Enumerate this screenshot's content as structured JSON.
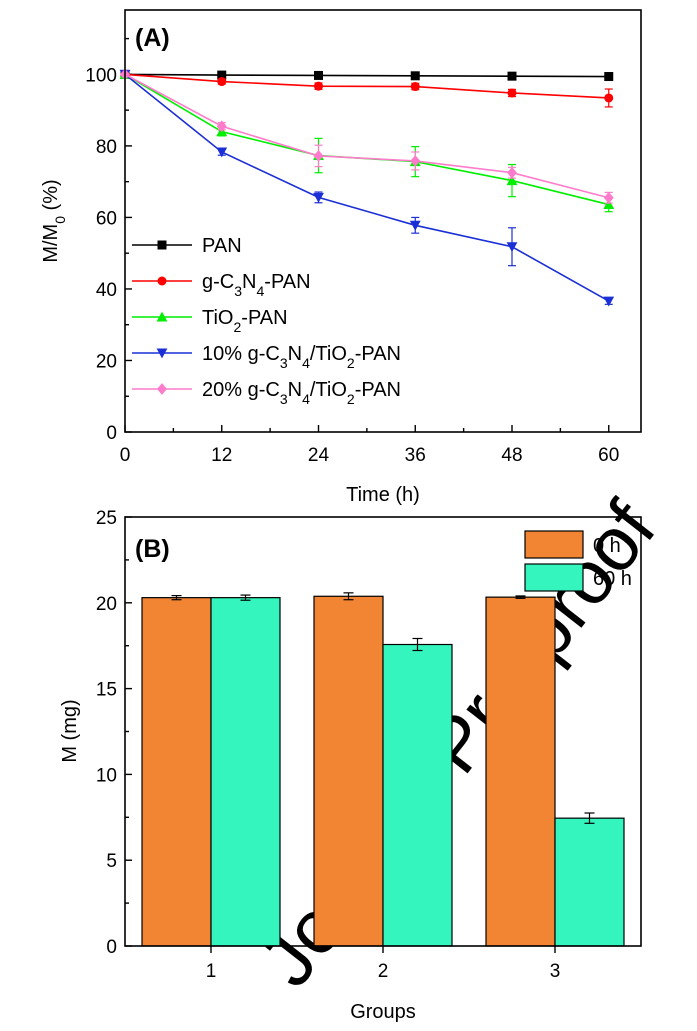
{
  "watermark": "Journal Pre-proof",
  "chart_data": [
    {
      "type": "line",
      "panel_label": "(A)",
      "xlabel": "Time (h)",
      "ylabel_main": "M/M",
      "ylabel_sub": "0",
      "ylabel_tail": " (%)",
      "x": [
        0,
        12,
        24,
        36,
        48,
        60
      ],
      "xticks": [
        "0",
        "12",
        "24",
        "36",
        "48",
        "60"
      ],
      "yticks": [
        "0",
        "20",
        "40",
        "60",
        "80",
        "100"
      ],
      "xlim": [
        0,
        64
      ],
      "ylim": [
        0,
        118
      ],
      "legend_position": "bottom-left",
      "series": [
        {
          "name": "PAN",
          "legend_parts": [
            [
              "PAN",
              ""
            ]
          ],
          "marker": "square",
          "color": "#000000",
          "values": [
            100,
            99.8,
            99.7,
            99.6,
            99.5,
            99.4
          ],
          "errors": [
            0,
            0.4,
            0.4,
            0.4,
            0.4,
            0.4
          ]
        },
        {
          "name": "g-C3N4-PAN",
          "legend_parts": [
            [
              "g-C",
              ""
            ],
            [
              "3",
              "sub"
            ],
            [
              "N",
              ""
            ],
            [
              "4",
              "sub"
            ],
            [
              "-PAN",
              ""
            ]
          ],
          "marker": "circle",
          "color": "#ff0000",
          "values": [
            100,
            98,
            96.7,
            96.6,
            94.8,
            93.4
          ],
          "errors": [
            0,
            0.7,
            0.9,
            0.9,
            1.0,
            2.5
          ]
        },
        {
          "name": "TiO2-PAN",
          "legend_parts": [
            [
              "TiO",
              ""
            ],
            [
              "2",
              "sub"
            ],
            [
              "-PAN",
              ""
            ]
          ],
          "marker": "triangle-up",
          "color": "#00ee00",
          "values": [
            100,
            84,
            77.3,
            75.6,
            70.3,
            63.6
          ],
          "errors": [
            0,
            1.2,
            4.8,
            4.2,
            4.5,
            2.0
          ]
        },
        {
          "name": "10% g-C3N4/TiO2-PAN",
          "legend_parts": [
            [
              "10% g-C",
              ""
            ],
            [
              "3",
              "sub"
            ],
            [
              "N",
              ""
            ],
            [
              "4",
              "sub"
            ],
            [
              "/TiO",
              ""
            ],
            [
              "2",
              "sub"
            ],
            [
              "-PAN",
              ""
            ]
          ],
          "marker": "triangle-down",
          "color": "#1a2fd6",
          "values": [
            100,
            78.3,
            65.6,
            57.8,
            51.8,
            36.6
          ],
          "errors": [
            0,
            0.9,
            1.5,
            2.2,
            5.3,
            0.9
          ]
        },
        {
          "name": "20% g-C3N4/TiO2-PAN",
          "legend_parts": [
            [
              "20% g-C",
              ""
            ],
            [
              "3",
              "sub"
            ],
            [
              "N",
              ""
            ],
            [
              "4",
              "sub"
            ],
            [
              "/TiO",
              ""
            ],
            [
              "2",
              "sub"
            ],
            [
              "-PAN",
              ""
            ]
          ],
          "marker": "diamond",
          "color": "#ff7ccc",
          "values": [
            100,
            85.5,
            77.2,
            75.8,
            72.5,
            65.5
          ],
          "errors": [
            0,
            1.0,
            3.0,
            2.5,
            1.5,
            1.5
          ]
        }
      ]
    },
    {
      "type": "bar",
      "panel_label": "(B)",
      "xlabel": "Groups",
      "ylabel": "M (mg)",
      "categories": [
        "1",
        "2",
        "3"
      ],
      "yticks": [
        "0",
        "5",
        "10",
        "15",
        "20",
        "25"
      ],
      "ylim": [
        0,
        25
      ],
      "legend_position": "top-right",
      "series": [
        {
          "name": "0 h",
          "color": "#f28533",
          "values": [
            20.3,
            20.38,
            20.33
          ],
          "errors": [
            0.12,
            0.2,
            0.07
          ]
        },
        {
          "name": "60 h",
          "color": "#33f5bd",
          "values": [
            20.3,
            17.57,
            7.45
          ],
          "errors": [
            0.15,
            0.35,
            0.3
          ]
        }
      ]
    }
  ]
}
